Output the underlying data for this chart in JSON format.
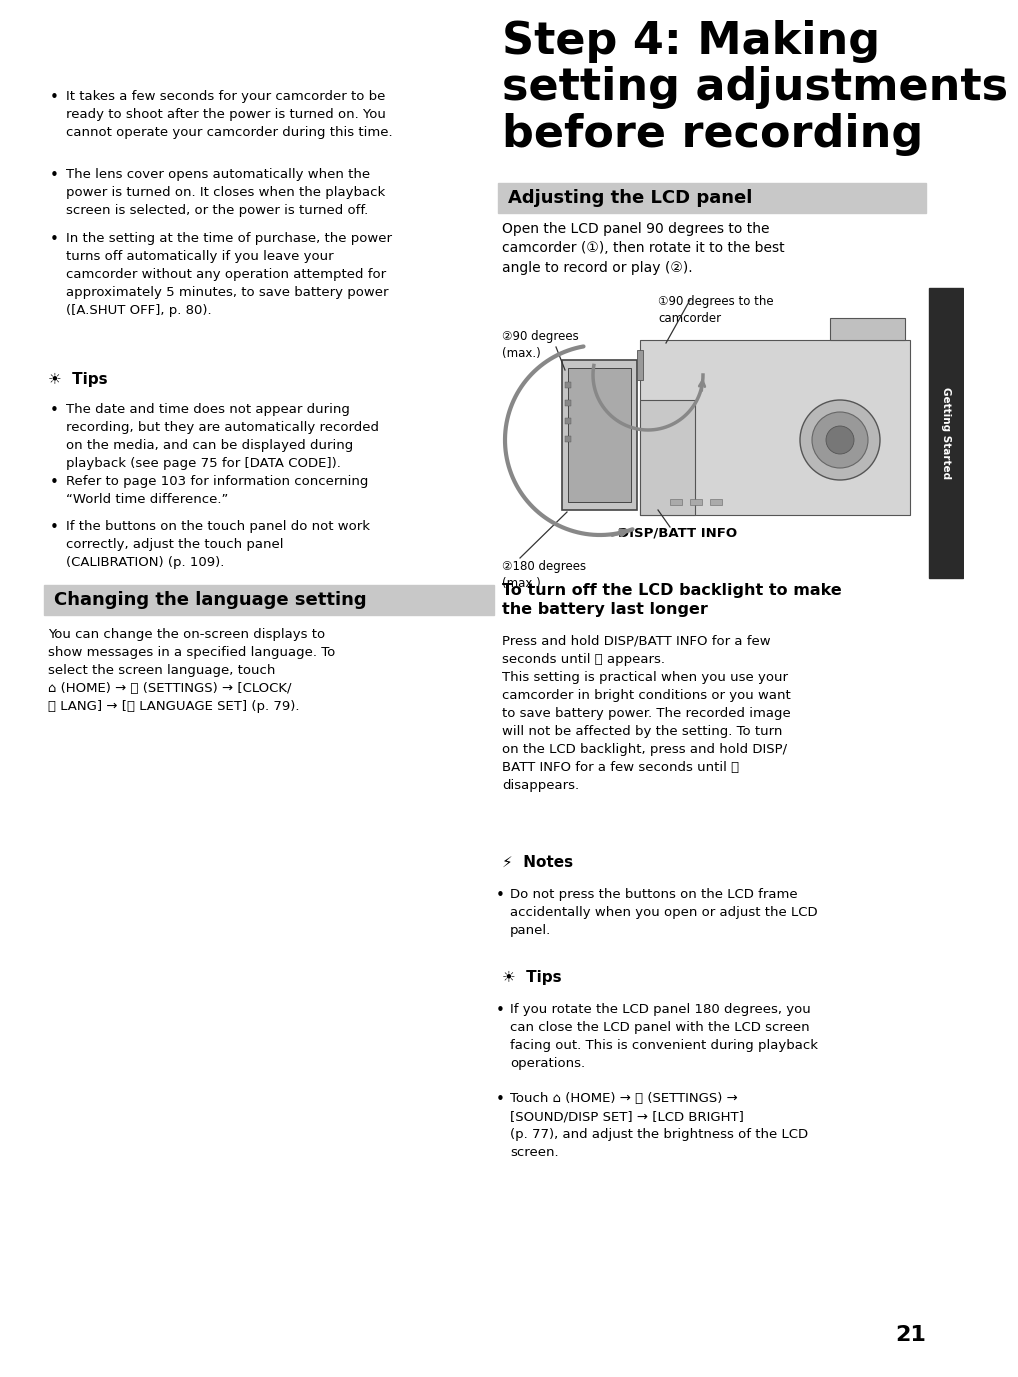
{
  "page_bg": "#ffffff",
  "sidebar_bg": "#2a2a2a",
  "sidebar_text": "Getting Started",
  "title": "Step 4: Making\nsetting adjustments\nbefore recording",
  "section_bar1_text": "Adjusting the LCD panel",
  "section_bar2_text": "Changing the language setting",
  "bar_color": "#c8c8c8",
  "left_bullet1": "It takes a few seconds for your camcorder to be\nready to shoot after the power is turned on. You\ncannot operate your camcorder during this time.",
  "left_bullet2": "The lens cover opens automatically when the\npower is turned on. It closes when the playback\nscreen is selected, or the power is turned off.",
  "left_bullet3": "In the setting at the time of purchase, the power\nturns off automatically if you leave your\ncamcorder without any operation attempted for\napproximately 5 minutes, to save battery power\n([A.SHUT OFF], p. 80).",
  "tips_header": "Tips",
  "tips_bullet1": "The date and time does not appear during\nrecording, but they are automatically recorded\non the media, and can be displayed during\nplayback (see page 75 for [DATA CODE]).",
  "tips_bullet2": "Refer to page 103 for information concerning\n“World time difference.”",
  "tips_bullet3": "If the buttons on the touch panel do not work\ncorrectly, adjust the touch panel\n(CALIBRATION) (p. 109).",
  "lcd_intro_line1": "Open the LCD panel 90 degrees to the",
  "lcd_intro_line2": "camcorder (①), then rotate it to the best",
  "lcd_intro_line3": "angle to record or play (②).",
  "lcd_label_circle1": "①90 degrees to the\ncamcorder",
  "lcd_label_circle2": "②90 degrees\n(max.)",
  "lcd_label_disp": "DISP/BATT INFO",
  "lcd_label_180": "②180 degrees\n(max.)",
  "lang_section_text1": "You can change the on-screen displays to",
  "lang_section_text2": "show messages in a specified language. To",
  "lang_section_text3": "select the screen language, touch",
  "lang_section_text4": "⌂ (HOME) → ⌖ (SETTINGS) → [CLOCK/",
  "lang_section_text5": "⒦ LANG] → [⒦ LANGUAGE SET] (p. 79).",
  "backlight_header": "To turn off the LCD backlight to make\nthe battery last longer",
  "backlight_body": "Press and hold DISP/BATT INFO for a few\nseconds until ⬞ appears.\nThis setting is practical when you use your\ncamcorder in bright conditions or you want\nto save battery power. The recorded image\nwill not be affected by the setting. To turn\non the LCD backlight, press and hold DISP/\nBATT INFO for a few seconds until ⬞\ndisappears.",
  "notes_header": "Notes",
  "notes_bullet1": "Do not press the buttons on the LCD frame\naccidentally when you open or adjust the LCD\npanel.",
  "tips2_header": "Tips",
  "tips2_bullet1": "If you rotate the LCD panel 180 degrees, you\ncan close the LCD panel with the LCD screen\nfacing out. This is convenient during playback\noperations.",
  "tips2_bullet2": "Touch ⌂ (HOME) → ⌖ (SETTINGS) →\n[SOUND/DISP SET] → [LCD BRIGHT]\n(p. 77), and adjust the brightness of the LCD\nscreen.",
  "page_number": "21"
}
